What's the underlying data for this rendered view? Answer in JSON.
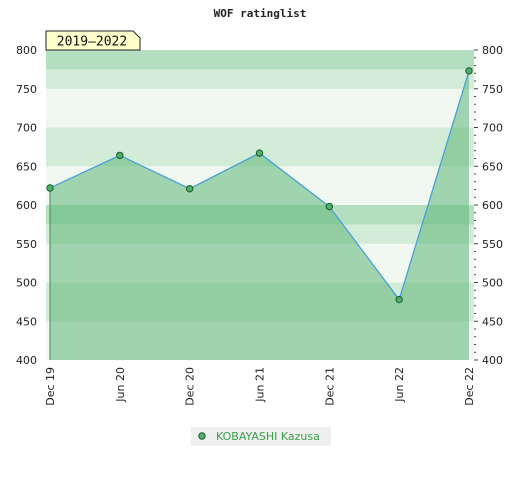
{
  "colors": {
    "band_light": "#f0f8f1",
    "band_mid": "#d3ecd8",
    "band_dark": "#b3dfc0",
    "area_fill": "#5fb777",
    "line": "#4aa0d8",
    "marker_fill": "#4caf6b",
    "marker_stroke": "#1e5a2e",
    "legend_text": "#3aa04a",
    "legend_bg": "#efefef",
    "badge_bg": "#ffffcc",
    "axis_text": "#222222"
  },
  "chart_data": {
    "type": "area",
    "title": "WOF ratinglist",
    "badge": "2019–2022",
    "x_ticks": [
      "Dec 19",
      "Jun 20",
      "Dec 20",
      "Jun 21",
      "Dec 21",
      "Jun 22",
      "Dec 22"
    ],
    "ylim": [
      400,
      800
    ],
    "y_ticks": [
      400,
      450,
      500,
      550,
      600,
      650,
      700,
      750,
      800
    ],
    "series": [
      {
        "name": "KOBAYASHI Kazusa",
        "points": [
          {
            "x": "Dec 19",
            "y": 622
          },
          {
            "x": "Jun 20",
            "y": 664
          },
          {
            "x": "Dec 20",
            "y": 621
          },
          {
            "x": "Jun 21",
            "y": 667
          },
          {
            "x": "Dec 21",
            "y": 598
          },
          {
            "x": "Jun 22",
            "y": 478
          },
          {
            "x": "Dec 22",
            "y": 773
          }
        ]
      }
    ],
    "grid": true,
    "legend_position": "bottom-center"
  }
}
